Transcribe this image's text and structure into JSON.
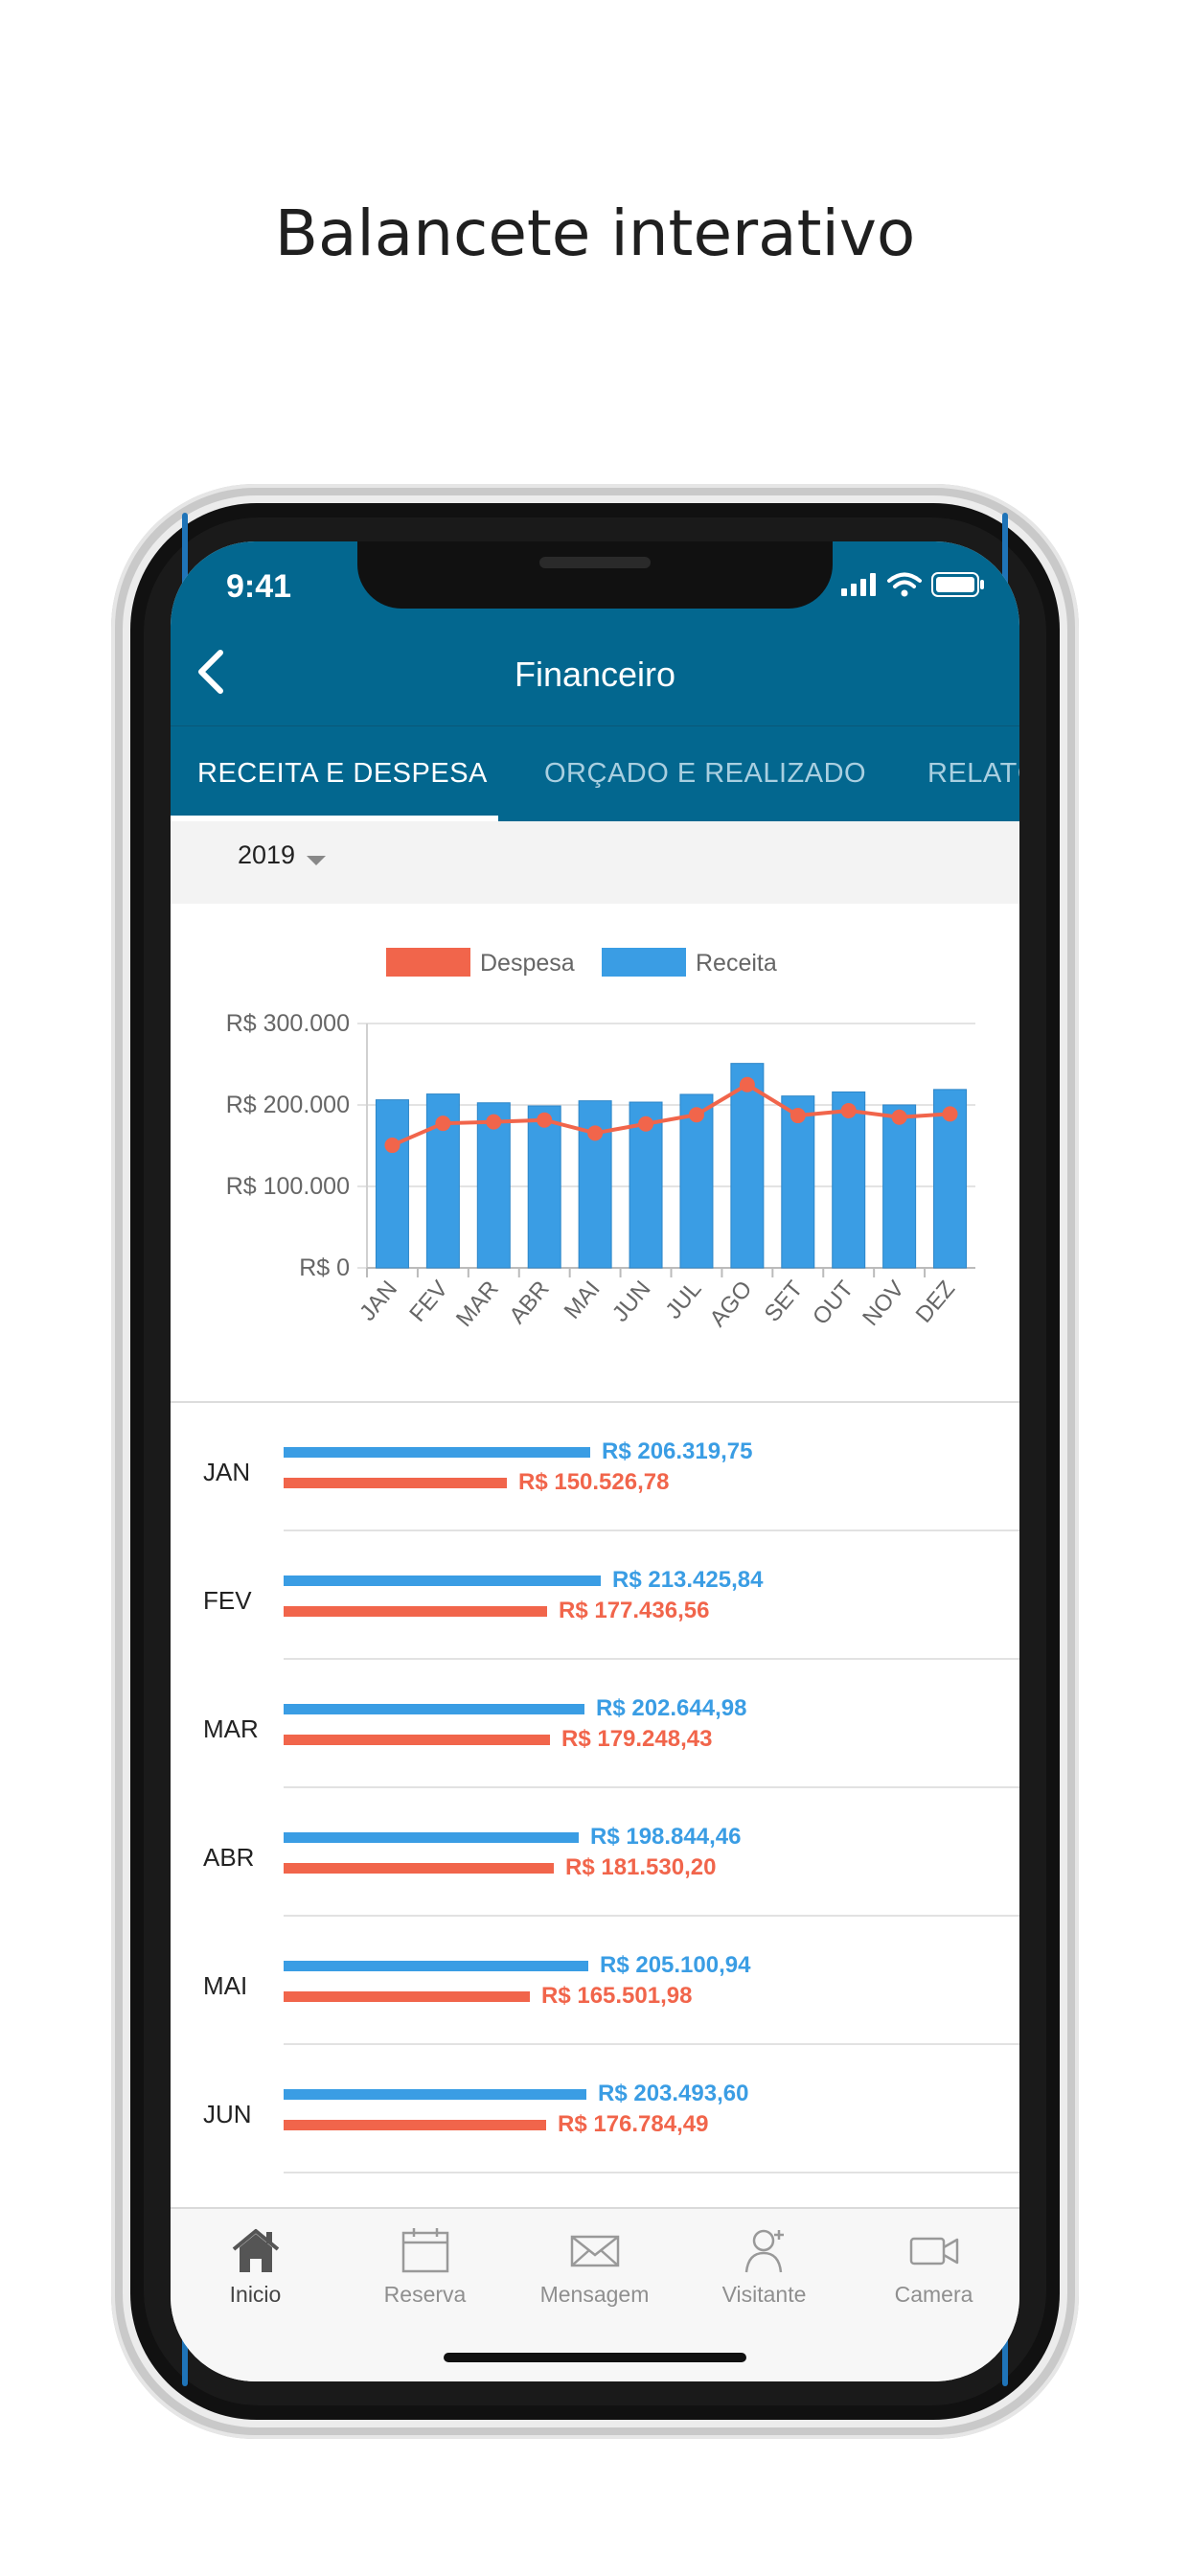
{
  "headline": "Balancete interativo",
  "status": {
    "time": "9:41"
  },
  "appbar": {
    "title": "Financeiro"
  },
  "tabs": [
    {
      "label": "RECEITA E DESPESA",
      "active": true
    },
    {
      "label": "ORÇADO E REALIZADO",
      "active": false
    },
    {
      "label": "RELATÓRIOS",
      "active": false
    }
  ],
  "year": "2019",
  "colors": {
    "receita": "#3a9de4",
    "despesa": "#f1654b",
    "appbar": "#03678f"
  },
  "chart_data": {
    "type": "bar",
    "categories": [
      "JAN",
      "FEV",
      "MAR",
      "ABR",
      "MAI",
      "JUN",
      "JUL",
      "AGO",
      "SET",
      "OUT",
      "NOV",
      "DEZ"
    ],
    "series": [
      {
        "name": "Receita",
        "kind": "bar",
        "values": [
          206319.75,
          213425.84,
          202644.98,
          198844.46,
          205100.94,
          203493.6,
          213000,
          251000,
          211000,
          216000,
          200000,
          219000
        ]
      },
      {
        "name": "Despesa",
        "kind": "line",
        "values": [
          150526.78,
          177436.56,
          179248.43,
          181530.2,
          165501.98,
          176784.49,
          188000,
          225000,
          187000,
          193000,
          185000,
          189000
        ]
      }
    ],
    "legend": [
      "Despesa",
      "Receita"
    ],
    "legend_position": "top",
    "yticks": [
      "R$ 0",
      "R$ 100.000",
      "R$ 200.000",
      "R$ 300.000"
    ],
    "ylim": [
      0,
      300000
    ],
    "grid": true
  },
  "list": [
    {
      "month": "JAN",
      "receita": "R$ 206.319,75",
      "despesa": "R$ 150.526,78",
      "r": 206319.75,
      "d": 150526.78
    },
    {
      "month": "FEV",
      "receita": "R$ 213.425,84",
      "despesa": "R$ 177.436,56",
      "r": 213425.84,
      "d": 177436.56
    },
    {
      "month": "MAR",
      "receita": "R$ 202.644,98",
      "despesa": "R$ 179.248,43",
      "r": 202644.98,
      "d": 179248.43
    },
    {
      "month": "ABR",
      "receita": "R$ 198.844,46",
      "despesa": "R$ 181.530,20",
      "r": 198844.46,
      "d": 181530.2
    },
    {
      "month": "MAI",
      "receita": "R$ 205.100,94",
      "despesa": "R$ 165.501,98",
      "r": 205100.94,
      "d": 165501.98
    },
    {
      "month": "JUN",
      "receita": "R$ 203.493,60",
      "despesa": "R$ 176.784,49",
      "r": 203493.6,
      "d": 176784.49
    }
  ],
  "bottom_nav": [
    {
      "label": "Inicio",
      "icon": "home-icon",
      "active": true
    },
    {
      "label": "Reserva",
      "icon": "calendar-icon",
      "active": false
    },
    {
      "label": "Mensagem",
      "icon": "envelope-icon",
      "active": false
    },
    {
      "label": "Visitante",
      "icon": "visitor-icon",
      "active": false
    },
    {
      "label": "Camera",
      "icon": "camera-icon",
      "active": false
    }
  ]
}
